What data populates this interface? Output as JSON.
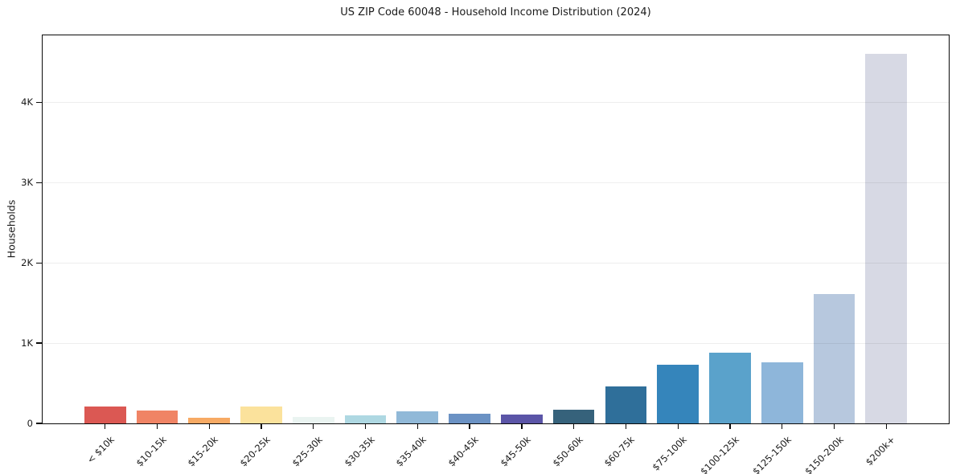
{
  "chart_data": {
    "type": "bar",
    "title": "US ZIP Code 60048 - Household Income Distribution (2024)",
    "xlabel": "",
    "ylabel": "Households",
    "categories": [
      "< $10k",
      "$10-15k",
      "$15-20k",
      "$20-25k",
      "$25-30k",
      "$30-35k",
      "$35-40k",
      "$40-45k",
      "$45-50k",
      "$50-60k",
      "$60-75k",
      "$75-100k",
      "$100-125k",
      "$125-150k",
      "$150-200k",
      "$200k+"
    ],
    "values": [
      210,
      160,
      70,
      210,
      80,
      105,
      150,
      120,
      115,
      170,
      465,
      735,
      885,
      765,
      1615,
      4605
    ],
    "bar_colors": [
      "#db5853",
      "#f08465",
      "#f7aa64",
      "#fbe29c",
      "#eaf4f1",
      "#aed8e2",
      "#91b9d8",
      "#6b92c4",
      "#5b55a7",
      "#36627b",
      "#2f6f9a",
      "#3585bb",
      "#5aa2cb",
      "#8eb6da",
      "#b7c8de",
      "#d7d9e4"
    ],
    "ytick_values": [
      0,
      1000,
      2000,
      3000,
      4000
    ],
    "ytick_labels": [
      "0",
      "1K",
      "2K",
      "3K",
      "4K"
    ],
    "ylim": [
      0,
      4835
    ],
    "grid": "horizontal-light",
    "legend": "none",
    "background": "#ffffff"
  }
}
